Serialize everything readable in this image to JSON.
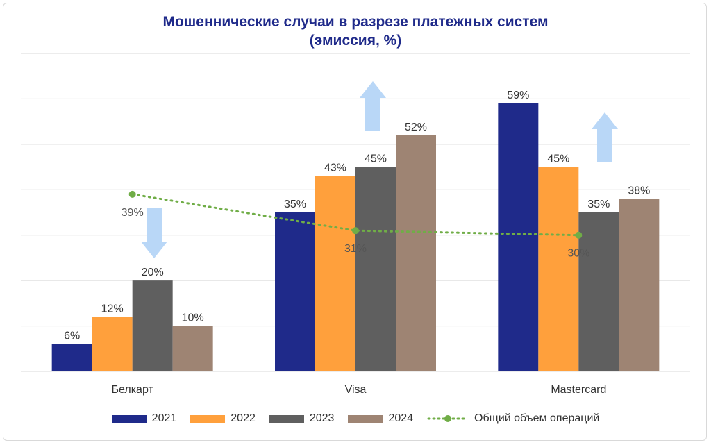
{
  "chart_data": {
    "type": "bar",
    "title_line1": "Мошеннические случаи в разрезе платежных систем",
    "title_line2": "(эмиссия, %)",
    "categories": [
      "Белкарт",
      "Visa",
      "Mastercard"
    ],
    "series": [
      {
        "name": "2021",
        "color": "#1f2a8a",
        "values": [
          6,
          35,
          59
        ],
        "labels": [
          "6%",
          "35%",
          "59%"
        ]
      },
      {
        "name": "2022",
        "color": "#ffa03c",
        "values": [
          12,
          43,
          45
        ],
        "labels": [
          "12%",
          "43%",
          "45%"
        ]
      },
      {
        "name": "2023",
        "color": "#5f5f5f",
        "values": [
          20,
          45,
          35
        ],
        "labels": [
          "20%",
          "45%",
          "35%"
        ]
      },
      {
        "name": "2024",
        "color": "#9e8473",
        "values": [
          10,
          52,
          38
        ],
        "labels": [
          "10%",
          "52%",
          "38%"
        ]
      }
    ],
    "line_series": {
      "name": "Общий объем операций",
      "color": "#70ad47",
      "values": [
        39,
        31,
        30
      ],
      "labels": [
        "39%",
        "31%",
        "30%"
      ]
    },
    "ylim": [
      0,
      70
    ],
    "grid": true,
    "legend_position": "bottom",
    "arrows": [
      {
        "category": "Белкарт",
        "direction": "down"
      },
      {
        "category": "Visa",
        "direction": "up"
      },
      {
        "category": "Mastercard",
        "direction": "up"
      }
    ]
  }
}
